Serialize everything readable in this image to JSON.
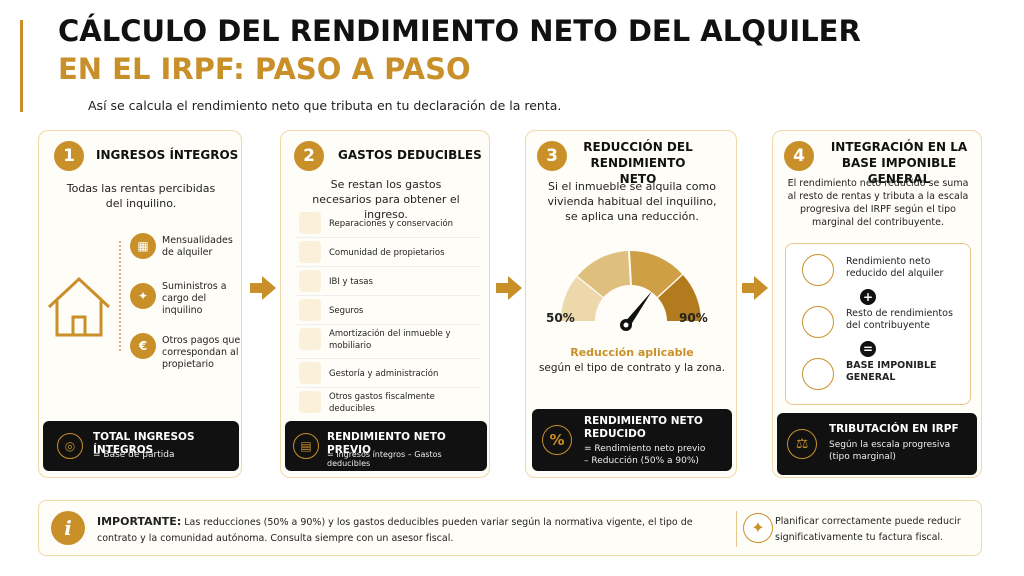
{
  "header": {
    "title_line1": "CÁLCULO DEL RENDIMIENTO NETO DEL ALQUILER",
    "title_line2": "EN EL IRPF: PASO A PASO",
    "subtitle": "Así se calcula el rendimiento neto que tributa en tu declaración de la renta."
  },
  "steps": [
    {
      "number": "1",
      "title": "INGRESOS ÍNTEGROS",
      "description": "Todas las rentas percibidas del inquilino.",
      "items": [
        "Mensualidades de alquiler",
        "Suministros a cargo del inquilino",
        "Otros pagos que correspondan al propietario"
      ],
      "footer": {
        "title": "TOTAL INGRESOS ÍNTEGROS",
        "text": "= Base de partida"
      }
    },
    {
      "number": "2",
      "title": "GASTOS DEDUCIBLES",
      "description": "Se restan los gastos necesarios para obtener el ingreso.",
      "items": [
        "Reparaciones y conservación",
        "Comunidad de propietarios",
        "IBI y tasas",
        "Seguros",
        "Amortización del inmueble y mobiliario",
        "Gestoría y administración",
        "Otros gastos fiscalmente deducibles"
      ],
      "footer": {
        "title": "RENDIMIENTO NETO PREVIO",
        "text": "= Ingresos íntegros – Gastos deducibles"
      }
    },
    {
      "number": "3",
      "title": "REDUCCIÓN DEL RENDIMIENTO NETO",
      "description": "Si el inmueble se alquila como vivienda habitual del inquilino, se aplica una reducción.",
      "gauge_min": "50%",
      "gauge_max": "90%",
      "highlight": "Reducción aplicable",
      "note": "según el tipo de contrato y la zona.",
      "footer": {
        "title": "RENDIMIENTO NETO REDUCIDO",
        "text_line1": "= Rendimiento neto previo",
        "text_line2": "– Reducción (50% a 90%)"
      }
    },
    {
      "number": "4",
      "title": "INTEGRACIÓN EN LA BASE IMPONIBLE GENERAL",
      "description": "El rendimiento neto reducido se suma al resto de rentas y tributa a la escala progresiva del IRPF según el tipo marginal del contribuyente.",
      "items": [
        "Rendimiento neto reducido del alquiler",
        "Resto de rendimientos del contribuyente",
        "BASE IMPONIBLE GENERAL"
      ],
      "operators": [
        "+",
        "="
      ],
      "footer": {
        "title": "TRIBUTACIÓN EN IRPF",
        "text": "Según la escala progresiva (tipo marginal)"
      }
    }
  ],
  "note": {
    "label": "IMPORTANTE:",
    "text": "Las reducciones (50% a 90%) y los gastos deducibles pueden variar según la normativa vigente, el tipo de contrato y la comunidad autónoma. Consulta siempre con un asesor fiscal.",
    "icon": "i",
    "tip": "Planificar correctamente puede reducir significativamente tu factura fiscal."
  }
}
